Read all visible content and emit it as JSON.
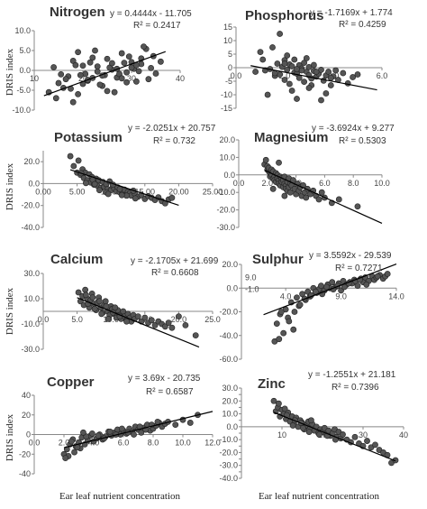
{
  "figure": {
    "y_axis_label": "DRIS  index",
    "x_axis_label": "Ear leaf nutrient concentration",
    "colors": {
      "point_fill": "#555555",
      "point_stroke": "#222222",
      "line": "#000000",
      "axis": "#888888"
    }
  },
  "chart_data": [
    {
      "type": "scatter",
      "title": "Nitrogen",
      "equation": "y = 0.4444x - 11.705",
      "r2": "R² = 0.2417",
      "slope": 0.4444,
      "intercept": -11.705,
      "xlim": [
        10,
        40
      ],
      "ylim": [
        -10,
        10
      ],
      "xticks": [
        10,
        20,
        30,
        40
      ],
      "xtick_labels": [
        "10",
        "20",
        "30",
        "40"
      ],
      "yticks": [
        -10,
        -5,
        0,
        5,
        10
      ],
      "ytick_labels": [
        "-10.0",
        "-5.0",
        "0.0",
        "5.0",
        "10.0"
      ],
      "trend_x": [
        12,
        37
      ],
      "x": [
        13,
        14,
        15,
        16,
        17,
        18,
        19,
        20,
        21,
        22,
        23,
        24,
        25,
        26,
        27,
        28,
        29,
        30,
        31,
        32,
        33,
        34,
        35,
        36,
        14.5,
        16.5,
        18.5,
        20.5,
        22.5,
        24.5,
        26.5,
        28.5,
        30.5,
        32.5,
        34.5,
        15.5,
        17.5,
        19.5,
        21.5,
        23.5,
        25.5,
        27.5,
        29.5,
        31.5,
        33.5,
        19,
        21,
        23,
        25,
        27,
        29,
        31,
        18,
        22,
        26,
        30,
        24,
        20,
        28,
        32
      ],
      "y": [
        -5.5,
        0.8,
        -3.2,
        -4.4,
        -1.5,
        2.4,
        -6.0,
        1.2,
        -2.6,
        3.2,
        -0.3,
        -3.9,
        2.9,
        0.2,
        -1.8,
        4.3,
        -0.5,
        2.1,
        -2.8,
        1.6,
        5.4,
        0.6,
        -0.8,
        2.2,
        -7.0,
        -2.2,
        1.3,
        -0.9,
        5.0,
        -1.2,
        -5.5,
        1.9,
        0.4,
        6.0,
        3.6,
        -1.0,
        -4.6,
        -1.2,
        2.0,
        -3.6,
        0.7,
        -0.9,
        3.5,
        -0.2,
        -2.2,
        4.6,
        -2.4,
        1.0,
        -5.2,
        0.4,
        -3.0,
        1.3,
        -8.0,
        -1.9,
        1.8,
        0.7,
        -1.3,
        -3.4,
        -2.0,
        3.0
      ]
    },
    {
      "type": "scatter",
      "title": "Phosphorus",
      "equation": "y = -1.7169x + 1.774",
      "r2": "R² = 0.4259",
      "slope": -1.7169,
      "intercept": 1.774,
      "xlim": [
        0,
        6
      ],
      "ylim": [
        -15,
        15
      ],
      "xticks": [
        0,
        2,
        4,
        6
      ],
      "xtick_labels": [
        "0.0",
        "2.0",
        "4.0",
        "6.0"
      ],
      "yticks": [
        -15,
        -10,
        -5,
        0,
        5,
        10,
        15
      ],
      "ytick_labels": [
        "-15",
        "-10",
        "-5",
        "0",
        "5",
        "10",
        "15"
      ],
      "trend_x": [
        0.6,
        5.8
      ],
      "x": [
        0.8,
        1.0,
        1.2,
        1.4,
        1.5,
        1.6,
        1.7,
        1.8,
        1.9,
        2.0,
        2.0,
        2.1,
        2.2,
        2.2,
        2.3,
        2.4,
        2.4,
        2.5,
        2.6,
        2.6,
        2.7,
        2.8,
        2.8,
        2.9,
        3.0,
        3.0,
        3.1,
        3.2,
        3.2,
        3.3,
        3.4,
        3.5,
        3.6,
        3.7,
        3.8,
        3.9,
        4.0,
        4.2,
        4.4,
        4.6,
        4.8,
        5.0,
        1.3,
        1.8,
        2.3,
        2.7,
        3.1,
        3.5,
        3.9,
        1.6,
        2.1,
        2.5,
        2.9,
        3.3,
        3.7,
        4.1,
        1.1,
        3.0,
        2.5,
        2.0
      ],
      "y": [
        -1.5,
        5.8,
        -1.0,
        -0.5,
        7.5,
        -3.0,
        1.5,
        -2.5,
        0.3,
        2.8,
        -4.5,
        -0.8,
        1.2,
        -6.0,
        0.5,
        -1.8,
        3.0,
        -2.2,
        0.9,
        -3.8,
        -0.3,
        1.8,
        -5.2,
        -1.5,
        0.2,
        -2.8,
        -4.0,
        -1.2,
        1.0,
        -3.3,
        -2.2,
        -0.8,
        -4.8,
        -2.9,
        -1.5,
        -6.5,
        -3.2,
        -4.5,
        -2.0,
        -5.8,
        -3.5,
        -2.5,
        -10.0,
        12.5,
        -8.5,
        -1.0,
        -6.5,
        -12.0,
        -3.8,
        -2.0,
        4.5,
        -0.5,
        3.5,
        -1.5,
        -9.5,
        -1.0,
        3.0,
        -7.5,
        -11.5,
        1.5
      ]
    },
    {
      "type": "scatter",
      "title": "Potassium",
      "equation": "y = -2.0251x + 20.757",
      "r2": "R² = 0.732",
      "slope": -2.0251,
      "intercept": 20.757,
      "xlim": [
        0,
        25
      ],
      "ylim": [
        -40,
        30
      ],
      "xticks": [
        0,
        5,
        10,
        15,
        20,
        25
      ],
      "xtick_labels": [
        "0.00",
        "5.00",
        "10.00",
        "15.00",
        "20.00",
        "25.00"
      ],
      "yticks": [
        -40,
        -20,
        0,
        20
      ],
      "ytick_labels": [
        "-40.0",
        "-20.0",
        "0.0",
        "20.0"
      ],
      "trend_x": [
        4,
        20
      ],
      "x": [
        4.0,
        4.5,
        5.0,
        5.2,
        5.5,
        5.8,
        6.0,
        6.2,
        6.5,
        6.8,
        7.0,
        7.2,
        7.5,
        7.8,
        8.0,
        8.2,
        8.5,
        8.8,
        9.0,
        9.3,
        9.5,
        9.8,
        10.0,
        10.3,
        10.5,
        10.8,
        11.0,
        11.3,
        11.5,
        11.8,
        12.0,
        12.3,
        12.5,
        12.8,
        13.0,
        13.5,
        14.0,
        14.5,
        15.0,
        15.5,
        16.0,
        16.5,
        17.0,
        17.5,
        18.0,
        18.5,
        19.0,
        6.3,
        7.3,
        8.3,
        9.3,
        10.3,
        11.3,
        12.3,
        13.3,
        5.6,
        7.6,
        9.6,
        11.6,
        13.6
      ],
      "y": [
        25.0,
        16.0,
        10.0,
        21.0,
        8.0,
        13.0,
        5.0,
        10.0,
        3.0,
        8.5,
        1.0,
        6.0,
        -1.0,
        4.5,
        -2.0,
        3.0,
        -4.0,
        1.5,
        -3.0,
        -0.5,
        -5.0,
        2.0,
        -6.0,
        -2.5,
        -4.5,
        -7.0,
        -3.5,
        -8.0,
        -6.0,
        -9.0,
        -5.5,
        -10.0,
        -7.5,
        -8.5,
        -11.0,
        -9.0,
        -12.0,
        -10.5,
        -14.0,
        -11.5,
        -13.0,
        -15.0,
        -12.5,
        -16.0,
        -18.0,
        -14.5,
        -13.0,
        0.5,
        3.5,
        -6.0,
        -8.0,
        -1.0,
        -5.0,
        -11.0,
        -6.5,
        9.5,
        -0.5,
        -9.5,
        -10.5,
        -13.5
      ]
    },
    {
      "type": "scatter",
      "title": "Magnesium",
      "equation": "y = -3.6924x + 9.277",
      "r2": "R² = 0.5303",
      "slope": -3.6924,
      "intercept": 9.277,
      "xlim": [
        0,
        10
      ],
      "ylim": [
        -30,
        20
      ],
      "xticks": [
        0,
        2,
        4,
        6,
        8,
        10
      ],
      "xtick_labels": [
        "0.0",
        "2.0",
        "4.0",
        "6.0",
        "8.0",
        "10.0"
      ],
      "yticks": [
        -30,
        -20,
        -10,
        0,
        10,
        20
      ],
      "ytick_labels": [
        "-30.0",
        "-20.0",
        "-10.0",
        "0.0",
        "10.0",
        "20.0"
      ],
      "trend_x": [
        1.8,
        10.0
      ],
      "x": [
        1.8,
        1.9,
        2.0,
        2.0,
        2.1,
        2.1,
        2.2,
        2.2,
        2.3,
        2.3,
        2.4,
        2.4,
        2.5,
        2.5,
        2.6,
        2.6,
        2.7,
        2.7,
        2.8,
        2.8,
        2.9,
        2.9,
        3.0,
        3.0,
        3.1,
        3.1,
        3.2,
        3.2,
        3.3,
        3.3,
        3.4,
        3.4,
        3.5,
        3.5,
        3.6,
        3.6,
        3.7,
        3.8,
        3.9,
        4.0,
        4.1,
        4.2,
        4.3,
        4.4,
        4.5,
        4.6,
        4.7,
        4.8,
        5.0,
        5.2,
        5.4,
        5.6,
        5.8,
        6.0,
        6.5,
        7.0,
        8.3,
        2.4,
        2.8,
        3.2
      ],
      "y": [
        6.0,
        8.5,
        3.0,
        5.0,
        2.0,
        4.0,
        1.0,
        -1.0,
        3.0,
        0.0,
        -2.0,
        2.0,
        -1.0,
        -3.0,
        1.0,
        -4.0,
        0.0,
        -2.0,
        -3.0,
        -5.0,
        -1.0,
        -6.0,
        -2.0,
        -4.0,
        -7.0,
        -3.0,
        -5.0,
        -1.0,
        -6.0,
        -8.0,
        -4.0,
        -9.0,
        -2.0,
        -7.0,
        -5.0,
        -10.0,
        -6.0,
        -3.0,
        -8.0,
        -11.0,
        -5.0,
        -9.0,
        -7.0,
        -12.0,
        -6.0,
        -10.0,
        -13.0,
        -8.0,
        -11.0,
        -9.0,
        -12.0,
        -14.0,
        -10.0,
        -13.0,
        -16.0,
        -14.0,
        -18.0,
        -8.0,
        7.0,
        -12.0
      ]
    },
    {
      "type": "scatter",
      "title": "Calcium",
      "equation": "y = -2.1705x + 21.699",
      "r2": "R² = 0.6608",
      "slope": -2.1705,
      "intercept": 21.699,
      "xlim": [
        0,
        25
      ],
      "ylim": [
        -30,
        30
      ],
      "xticks": [
        0,
        5,
        10,
        15,
        20,
        25
      ],
      "xtick_labels": [
        "0.0",
        "5.0",
        "10.0",
        "15.0",
        "20.0",
        "25.0"
      ],
      "yticks": [
        -30,
        -10,
        10,
        30
      ],
      "ytick_labels": [
        "-30.0",
        "-10.0",
        "10.0",
        "30.0"
      ],
      "trend_x": [
        5,
        23
      ],
      "x": [
        5.2,
        5.5,
        5.8,
        6.0,
        6.2,
        6.5,
        6.8,
        7.0,
        7.2,
        7.5,
        7.8,
        8.0,
        8.2,
        8.5,
        8.8,
        9.0,
        9.2,
        9.5,
        9.8,
        10.0,
        10.2,
        10.5,
        10.8,
        11.0,
        11.3,
        11.5,
        11.8,
        12.0,
        12.3,
        12.5,
        12.8,
        13.0,
        13.3,
        13.5,
        14.0,
        14.5,
        15.0,
        15.5,
        16.0,
        16.5,
        17.0,
        17.5,
        18.0,
        18.5,
        19.0,
        20.0,
        21.0,
        22.5,
        6.3,
        7.3,
        8.3,
        9.3,
        10.3,
        11.3,
        12.3,
        6.6,
        7.6,
        8.6,
        9.6,
        10.6
      ],
      "y": [
        15.0,
        8.0,
        12.0,
        5.0,
        17.0,
        10.0,
        3.0,
        9.0,
        14.0,
        6.0,
        1.0,
        7.0,
        11.0,
        3.0,
        -1.0,
        5.0,
        8.0,
        0.0,
        -3.0,
        4.0,
        2.0,
        -2.0,
        -5.0,
        1.0,
        -3.0,
        -6.0,
        0.0,
        -4.0,
        -7.0,
        -2.0,
        -5.0,
        -8.0,
        -3.0,
        -6.0,
        -4.0,
        -8.0,
        -5.0,
        -9.0,
        -7.0,
        -11.0,
        -8.0,
        -10.0,
        -12.0,
        -9.0,
        -13.0,
        -4.0,
        -11.0,
        -19.0,
        13.0,
        11.0,
        8.0,
        4.0,
        -1.0,
        -4.0,
        -8.0,
        6.0,
        2.0,
        -2.0,
        -6.0,
        3.0
      ]
    },
    {
      "type": "scatter",
      "title": "Sulphur",
      "equation": "y = 3.5592x - 29.539",
      "r2": "R² = 0.7271",
      "slope": 3.5592,
      "intercept": -29.539,
      "xlim": [
        0,
        14
      ],
      "ylim": [
        -60,
        20
      ],
      "xticks": [
        4,
        9,
        14
      ],
      "xtick_labels": [
        "4.0",
        "9.0",
        "14.0"
      ],
      "yticks": [
        -60,
        -40,
        -20,
        0,
        20
      ],
      "ytick_labels": [
        "-60.0",
        "-40.0",
        "-20.0",
        "0.0",
        "20.0"
      ],
      "yticks_minor": [
        -1,
        9
      ],
      "yticks_minor_labels": [
        "-1.0",
        "9.0"
      ],
      "trend_x": [
        2,
        14
      ],
      "x": [
        3.0,
        3.2,
        3.5,
        3.8,
        4.0,
        4.2,
        4.5,
        4.8,
        5.0,
        5.2,
        5.5,
        5.8,
        6.0,
        6.2,
        6.5,
        6.8,
        7.0,
        7.2,
        7.5,
        7.8,
        8.0,
        8.2,
        8.5,
        8.8,
        9.0,
        9.2,
        9.5,
        9.8,
        10.0,
        10.2,
        10.5,
        10.8,
        11.0,
        11.2,
        11.5,
        11.8,
        12.0,
        12.2,
        12.5,
        12.8,
        13.0,
        13.2,
        4.3,
        5.3,
        6.3,
        7.3,
        8.3,
        9.3,
        10.3,
        11.3,
        12.3,
        4.7,
        5.7,
        6.7,
        7.7,
        8.7,
        9.7,
        10.7,
        3.4,
        3.6
      ],
      "y": [
        -45.0,
        -30.0,
        -22.0,
        -38.0,
        -18.0,
        -25.0,
        -12.0,
        -20.0,
        -8.0,
        -15.0,
        -5.0,
        -10.0,
        -3.0,
        -7.0,
        0.0,
        -4.0,
        -1.0,
        2.0,
        -2.0,
        3.0,
        0.0,
        5.0,
        1.0,
        4.0,
        -2.0,
        6.0,
        3.0,
        5.0,
        4.0,
        7.0,
        2.0,
        8.0,
        5.0,
        9.0,
        6.0,
        10.0,
        7.0,
        9.0,
        11.0,
        8.0,
        10.0,
        12.0,
        -28.0,
        -14.0,
        -6.0,
        -5.0,
        -1.0,
        1.0,
        6.0,
        3.0,
        10.0,
        -35.0,
        -9.0,
        -3.0,
        1.0,
        2.0,
        4.0,
        7.0,
        -43.0,
        -20.0
      ]
    },
    {
      "type": "scatter",
      "title": "Copper",
      "equation": "y = 3.69x - 20.735",
      "r2": "R² = 0.6587",
      "slope": 3.69,
      "intercept": -20.735,
      "xlim": [
        0,
        12
      ],
      "ylim": [
        -40,
        40
      ],
      "xticks": [
        0,
        2,
        4,
        6,
        8,
        10,
        12
      ],
      "xtick_labels": [
        "0.0",
        "2.0",
        "4.0",
        "6.0",
        "8.0",
        "10.0",
        "12.0"
      ],
      "yticks": [
        -40,
        -20,
        0,
        20,
        40
      ],
      "ytick_labels": [
        "-40",
        "-20",
        "0",
        "20",
        "40"
      ],
      "trend_x": [
        2,
        12
      ],
      "x": [
        2.0,
        2.2,
        2.4,
        2.6,
        2.8,
        3.0,
        3.2,
        3.4,
        3.6,
        3.8,
        4.0,
        4.2,
        4.4,
        4.6,
        4.8,
        5.0,
        5.2,
        5.4,
        5.6,
        5.8,
        6.0,
        6.2,
        6.4,
        6.6,
        6.8,
        7.0,
        7.2,
        7.4,
        7.6,
        7.8,
        8.0,
        8.2,
        8.4,
        8.6,
        8.8,
        9.0,
        9.5,
        10.0,
        10.5,
        11.0,
        2.3,
        2.7,
        3.1,
        3.5,
        3.9,
        4.3,
        4.7,
        5.1,
        5.5,
        5.9,
        6.3,
        6.7,
        7.1,
        7.5,
        7.9,
        8.3,
        2.1,
        2.5,
        2.9,
        3.3
      ],
      "y": [
        -20.0,
        -15.0,
        -10.0,
        -5.0,
        -12.0,
        -8.0,
        -3.0,
        -10.0,
        -6.0,
        -1.0,
        -7.0,
        -4.0,
        0.0,
        -5.0,
        -2.0,
        3.0,
        -1.0,
        2.0,
        5.0,
        0.0,
        4.0,
        1.0,
        6.0,
        3.0,
        8.0,
        5.0,
        2.0,
        7.0,
        10.0,
        4.0,
        6.0,
        9.0,
        12.0,
        8.0,
        11.0,
        13.0,
        10.0,
        15.0,
        12.0,
        20.0,
        -22.0,
        -18.0,
        -14.0,
        -2.0,
        1.0,
        -1.0,
        -4.0,
        3.0,
        0.0,
        6.0,
        2.0,
        0.0,
        8.0,
        5.0,
        10.0,
        13.0,
        -24.0,
        -7.0,
        -13.0,
        2.0
      ]
    },
    {
      "type": "scatter",
      "title": "Zinc",
      "equation": "y = -1.2551x + 21.181",
      "r2": "R² = 0.7396",
      "slope": -1.2551,
      "intercept": 21.181,
      "xlim": [
        0,
        40
      ],
      "ylim": [
        -40,
        30
      ],
      "xticks": [
        10,
        20,
        30,
        40
      ],
      "xtick_labels": [
        "10",
        "20",
        "30",
        "40"
      ],
      "yticks": [
        -40,
        -35,
        -30,
        -25,
        -20,
        -15,
        -10,
        -5,
        0,
        5,
        10,
        15,
        20,
        25,
        30
      ],
      "ytick_labels": [
        "-40.0",
        "-35.0",
        "-30.0",
        "-25.0",
        "-20.0",
        "-15.0",
        "-10.0",
        "-5.0",
        "0.0",
        "5.0",
        "10.0",
        "15.0",
        "20.0",
        "25.0",
        "30.0"
      ],
      "trend_x": [
        8,
        38
      ],
      "x": [
        8.0,
        8.5,
        9.0,
        9.5,
        10.0,
        10.5,
        11.0,
        11.5,
        12.0,
        12.5,
        13.0,
        13.5,
        14.0,
        14.5,
        15.0,
        15.5,
        16.0,
        16.5,
        17.0,
        17.5,
        18.0,
        18.5,
        19.0,
        19.5,
        20.0,
        20.5,
        21.0,
        21.5,
        22.0,
        22.5,
        23.0,
        23.5,
        24.0,
        24.5,
        25.0,
        26.0,
        27.0,
        28.0,
        29.0,
        30.0,
        31.0,
        32.0,
        33.0,
        34.0,
        35.0,
        36.0,
        37.0,
        38.0,
        9.2,
        11.2,
        13.2,
        15.2,
        17.2,
        19.2,
        21.2,
        23.2,
        10.7,
        12.7,
        14.7,
        16.7
      ],
      "y": [
        20.0,
        12.0,
        15.0,
        8.0,
        13.0,
        10.0,
        6.0,
        11.0,
        4.0,
        8.0,
        2.0,
        7.0,
        0.0,
        5.0,
        3.0,
        -2.0,
        1.0,
        4.0,
        -1.0,
        2.0,
        -3.0,
        0.0,
        -5.0,
        -2.0,
        -4.0,
        -1.0,
        -6.0,
        -3.0,
        -7.0,
        -5.0,
        -2.0,
        -8.0,
        -4.0,
        -9.0,
        -6.0,
        -10.0,
        -12.0,
        -8.0,
        -13.0,
        -15.0,
        -11.0,
        -16.0,
        -14.0,
        -18.0,
        -20.0,
        -22.0,
        -28.0,
        -26.0,
        18.0,
        9.0,
        5.0,
        -1.0,
        5.0,
        -6.0,
        -7.0,
        -10.0,
        14.0,
        1.0,
        3.0,
        -4.0
      ]
    }
  ]
}
